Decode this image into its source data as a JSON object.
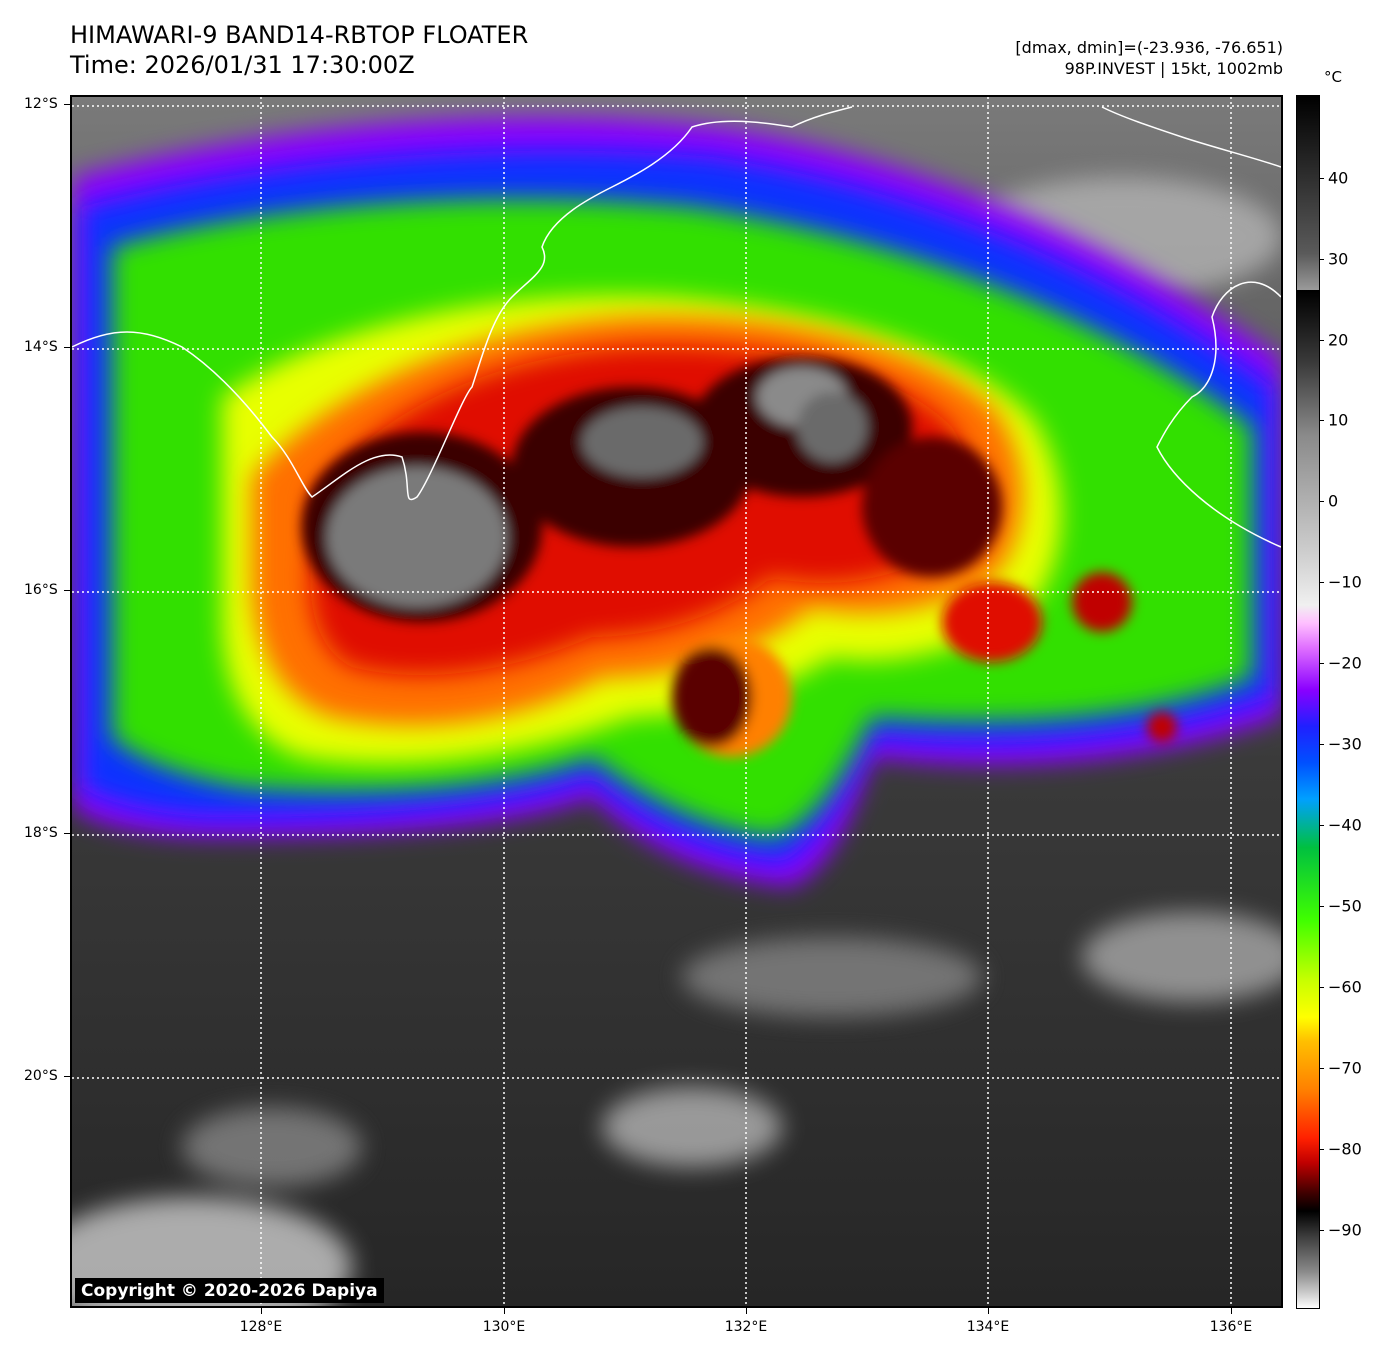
{
  "header": {
    "title_line1": "HIMAWARI-9 BAND14-RBTOP FLOATER",
    "title_line2": "Time: 2026/01/31 17:30:00Z",
    "info_line1": "[dmax, dmin]=(-23.936, -76.651)",
    "info_line2": "98P.INVEST | 15kt, 1002mb"
  },
  "map": {
    "latitudes": [
      "12°S",
      "14°S",
      "16°S",
      "18°S",
      "20°S"
    ],
    "longitudes": [
      "128°E",
      "130°E",
      "132°E",
      "134°E",
      "136°E"
    ],
    "copyright": "Copyright © 2020-2026 Dapiya"
  },
  "colorbar": {
    "unit": "°C",
    "labels": [
      "40",
      "30",
      "20",
      "10",
      "0",
      "−10",
      "−20",
      "−30",
      "−40",
      "−50",
      "−60",
      "−70",
      "−80",
      "−90"
    ]
  }
}
